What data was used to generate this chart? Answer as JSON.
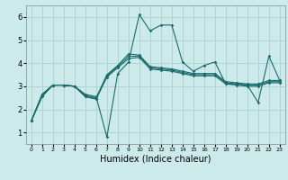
{
  "bg_color": "#cdeaea",
  "grid_color": "#aed4d4",
  "line_color": "#1a6b6b",
  "xlabel": "Humidex (Indice chaleur)",
  "xlim": [
    -0.5,
    23.5
  ],
  "ylim": [
    0.5,
    6.5
  ],
  "yticks": [
    1,
    2,
    3,
    4,
    5,
    6
  ],
  "xticks": [
    0,
    1,
    2,
    3,
    4,
    5,
    6,
    7,
    8,
    9,
    10,
    11,
    12,
    13,
    14,
    15,
    16,
    17,
    18,
    19,
    20,
    21,
    22,
    23
  ],
  "series": [
    [
      1.5,
      2.65,
      3.05,
      3.05,
      3.0,
      2.65,
      2.55,
      0.8,
      3.55,
      4.05,
      6.1,
      5.4,
      5.65,
      5.65,
      4.05,
      3.65,
      3.9,
      4.05,
      3.1,
      3.1,
      3.05,
      2.3,
      4.3,
      3.25
    ],
    [
      1.5,
      2.65,
      3.05,
      3.05,
      3.0,
      2.6,
      2.5,
      3.5,
      3.9,
      4.4,
      4.35,
      3.85,
      3.8,
      3.75,
      3.65,
      3.55,
      3.55,
      3.55,
      3.2,
      3.15,
      3.1,
      3.1,
      3.25,
      3.25
    ],
    [
      1.5,
      2.6,
      3.05,
      3.05,
      3.0,
      2.55,
      2.45,
      3.45,
      3.85,
      4.3,
      4.3,
      3.8,
      3.75,
      3.7,
      3.6,
      3.5,
      3.5,
      3.5,
      3.15,
      3.1,
      3.05,
      3.05,
      3.2,
      3.2
    ],
    [
      1.5,
      2.55,
      3.05,
      3.05,
      3.0,
      2.55,
      2.45,
      3.4,
      3.8,
      4.2,
      4.25,
      3.75,
      3.7,
      3.65,
      3.55,
      3.45,
      3.45,
      3.45,
      3.1,
      3.05,
      3.0,
      3.0,
      3.15,
      3.15
    ]
  ]
}
